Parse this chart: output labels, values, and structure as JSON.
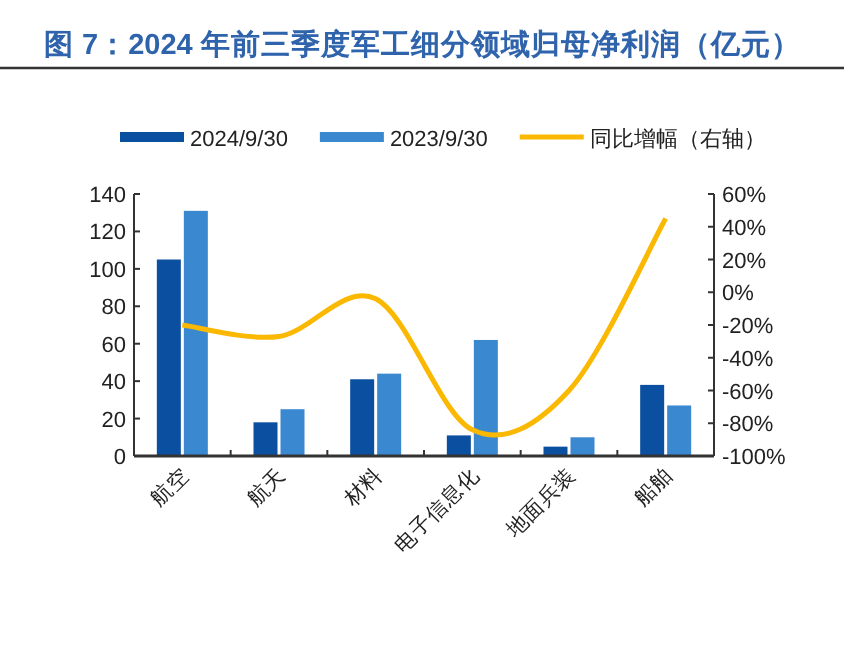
{
  "chart_data": {
    "type": "bar",
    "title": "图 7：2024 年前三季度军工细分领域归母净利润（亿元）",
    "categories": [
      "航空",
      "航天",
      "材料",
      "电子信息化",
      "地面兵装",
      "船舶"
    ],
    "series": [
      {
        "name": "2024/9/30",
        "color": "#0b4fa0",
        "values": [
          105,
          18,
          41,
          11,
          5,
          38
        ]
      },
      {
        "name": "2023/9/30",
        "color": "#3a88d0",
        "values": [
          131,
          25,
          44,
          62,
          10,
          27
        ]
      },
      {
        "name": "同比增幅（右轴）",
        "type": "line",
        "axis": "y2",
        "color": "#fbb800",
        "values": [
          -20,
          -27,
          -4,
          -84,
          -60,
          45
        ]
      }
    ],
    "ylim": [
      0,
      140
    ],
    "yticks": [
      0,
      20,
      40,
      60,
      80,
      100,
      120,
      140
    ],
    "y2lim": [
      -100,
      60
    ],
    "y2ticks": [
      {
        "value": -100,
        "label": "-100%"
      },
      {
        "value": -80,
        "label": "-80%"
      },
      {
        "value": -60,
        "label": "-60%"
      },
      {
        "value": -40,
        "label": "-40%"
      },
      {
        "value": -20,
        "label": "-20%"
      },
      {
        "value": 0,
        "label": "0%"
      },
      {
        "value": 20,
        "label": "20%"
      },
      {
        "value": 40,
        "label": "40%"
      },
      {
        "value": 60,
        "label": "60%"
      }
    ],
    "legend": "top",
    "grid": false
  }
}
